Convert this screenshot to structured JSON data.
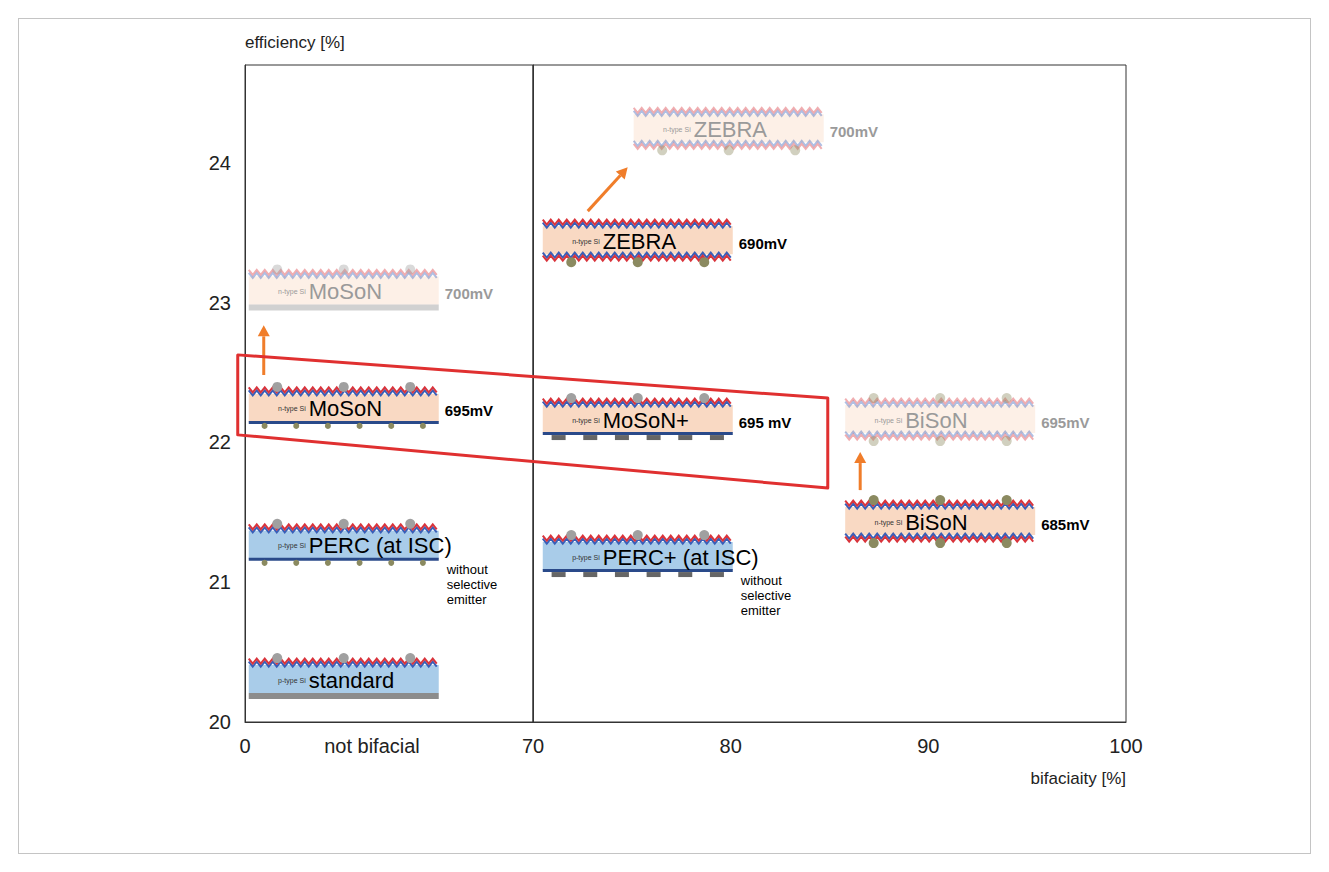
{
  "chart_data": {
    "type": "scatter",
    "x_label": "bifaciaity [%]",
    "y_label": "efficiency [%]",
    "annotations": [
      "not bifacial"
    ],
    "panels": [
      {
        "xlim": [
          0,
          70
        ],
        "xticks": [
          0
        ]
      },
      {
        "xlim": [
          70,
          100
        ],
        "xticks": [
          70,
          80,
          90,
          100
        ]
      }
    ],
    "ylim": [
      20,
      24.7
    ],
    "yticks": [
      20,
      21,
      22,
      23,
      24
    ],
    "grid": false,
    "series": [
      {
        "color": "#000000",
        "values": [
          {
            "label": "standard",
            "substrate": "p-type Si",
            "x": 24,
            "y": 20.3,
            "marker": "full-rear"
          },
          {
            "label": "PERC (at ISC)",
            "substrate": "p-type Si",
            "x": 24,
            "y": 21.26,
            "note": "without selective emitter",
            "marker": "local-rear"
          },
          {
            "label": "MoSoN",
            "substrate": "n-type Si",
            "x": 24,
            "y": 22.24,
            "voltage": "695mV",
            "marker": "local-rear"
          },
          {
            "label": "PERC+ (at ISC)",
            "substrate": "p-type Si",
            "x": 75.3,
            "y": 21.18,
            "note": "without selective emitter",
            "marker": "grid-rear"
          },
          {
            "label": "MoSoN+",
            "substrate": "n-type Si",
            "x": 75.3,
            "y": 22.16,
            "voltage": "695 mV",
            "marker": "grid-rear"
          },
          {
            "label": "ZEBRA",
            "substrate": "n-type Si",
            "x": 75.3,
            "y": 23.44,
            "voltage": "690mV",
            "marker": "back-contact"
          },
          {
            "label": "BiSoN",
            "substrate": "n-type Si",
            "x": 90.6,
            "y": 21.43,
            "voltage": "685mV",
            "marker": "bifacial"
          }
        ]
      },
      {
        "color": "#9a9a9a",
        "values": [
          {
            "label": "MoSoN",
            "substrate": "n-type Si",
            "x": 24,
            "y": 23.08,
            "voltage": "700mV",
            "marker": "full-rear",
            "from": 2
          },
          {
            "label": "ZEBRA",
            "substrate": "n-type Si",
            "x": 79.9,
            "y": 24.24,
            "voltage": "700mV",
            "marker": "back-contact",
            "from": 5
          },
          {
            "label": "BiSoN",
            "substrate": "n-type Si",
            "x": 90.6,
            "y": 22.16,
            "voltage": "695mV",
            "marker": "bifacial",
            "from": 6
          }
        ]
      }
    ],
    "highlight": [
      2,
      4
    ]
  }
}
